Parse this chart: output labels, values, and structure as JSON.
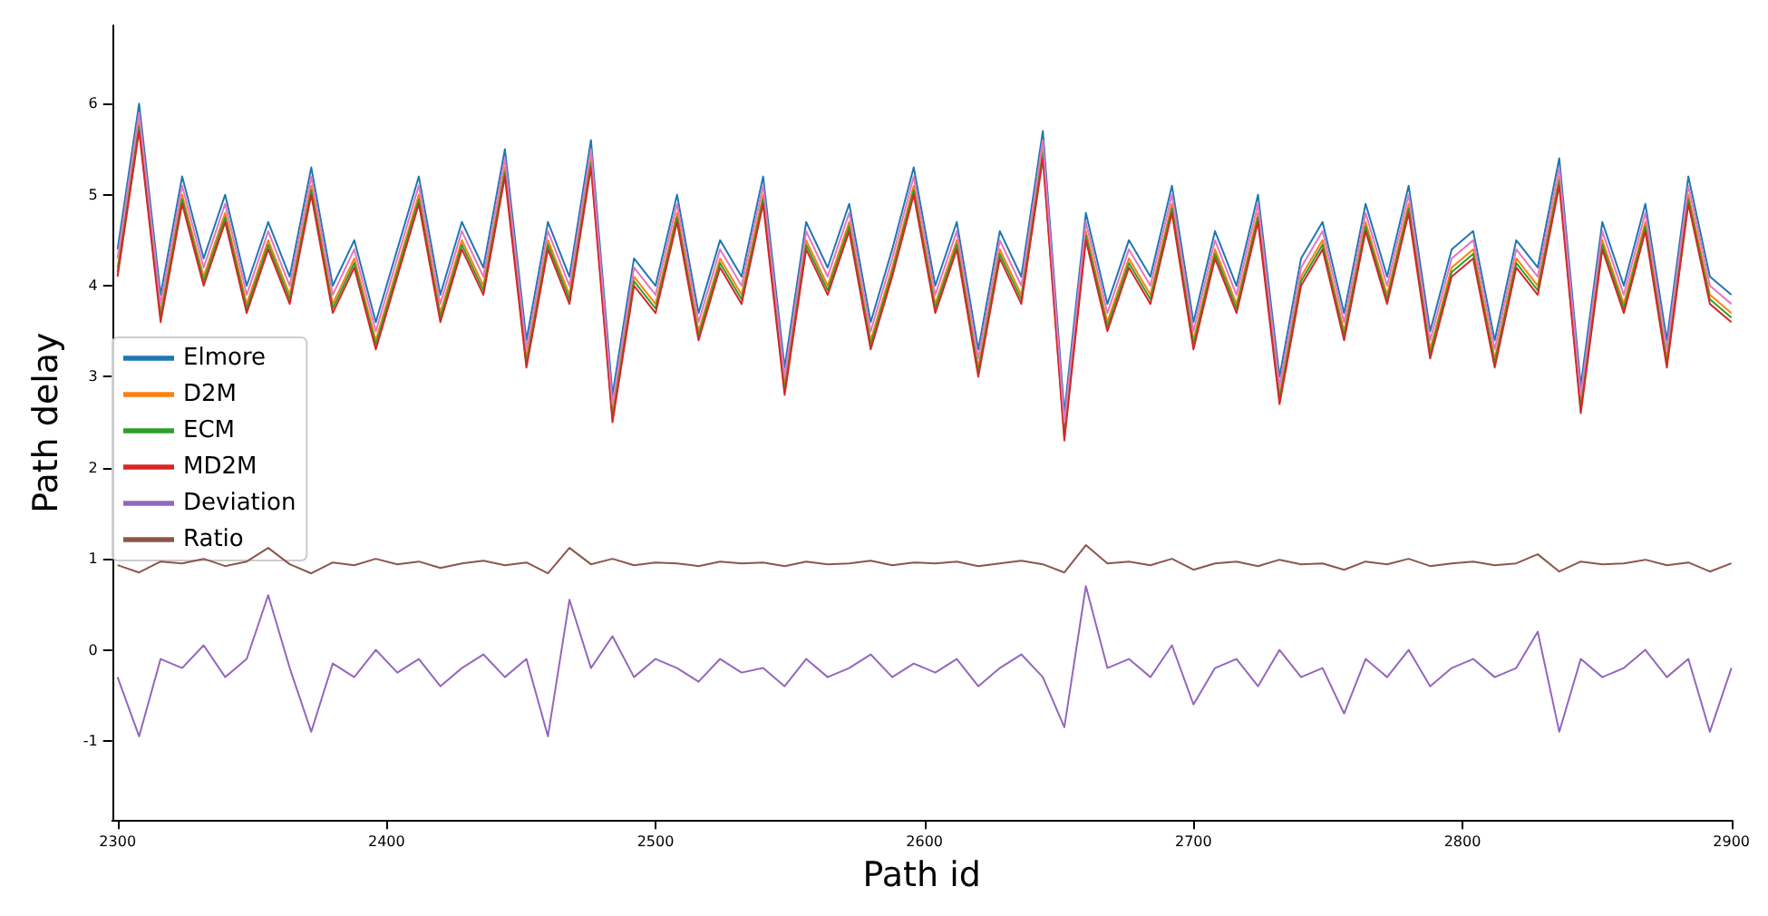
{
  "chart_data": {
    "type": "line",
    "xlabel": "Path id",
    "ylabel": "Path delay",
    "xlim": [
      2298,
      2900
    ],
    "ylim": [
      -1.87,
      6.86
    ],
    "xticks": [
      2300,
      2400,
      2500,
      2600,
      2700,
      2800,
      2900
    ],
    "yticks": [
      -1,
      0,
      1,
      2,
      3,
      4,
      5,
      6
    ],
    "grid": false,
    "legend": "left",
    "marker": "none",
    "line_style": "solid",
    "x": [
      2300,
      2308,
      2316,
      2324,
      2332,
      2340,
      2348,
      2356,
      2364,
      2372,
      2380,
      2388,
      2396,
      2404,
      2412,
      2420,
      2428,
      2436,
      2444,
      2452,
      2460,
      2468,
      2476,
      2484,
      2492,
      2500,
      2508,
      2516,
      2524,
      2532,
      2540,
      2548,
      2556,
      2564,
      2572,
      2580,
      2588,
      2596,
      2604,
      2612,
      2620,
      2628,
      2636,
      2644,
      2652,
      2660,
      2668,
      2676,
      2684,
      2692,
      2700,
      2708,
      2716,
      2724,
      2732,
      2740,
      2748,
      2756,
      2764,
      2772,
      2780,
      2788,
      2796,
      2804,
      2812,
      2820,
      2828,
      2836,
      2844,
      2852,
      2860,
      2868,
      2876,
      2884,
      2892,
      2900
    ],
    "series": [
      {
        "name": "Elmore",
        "color": "#1f77b4",
        "values": [
          4.4,
          6.0,
          3.9,
          5.2,
          4.3,
          5.0,
          4.0,
          4.7,
          4.1,
          5.3,
          4.0,
          4.5,
          3.6,
          4.4,
          5.2,
          3.9,
          4.7,
          4.2,
          5.5,
          3.4,
          4.7,
          4.1,
          5.6,
          2.8,
          4.3,
          4.0,
          5.0,
          3.7,
          4.5,
          4.1,
          5.2,
          3.1,
          4.7,
          4.2,
          4.9,
          3.6,
          4.4,
          5.3,
          4.0,
          4.7,
          3.3,
          4.6,
          4.1,
          5.7,
          2.6,
          4.8,
          3.8,
          4.5,
          4.1,
          5.1,
          3.6,
          4.6,
          4.0,
          5.0,
          3.0,
          4.3,
          4.7,
          3.7,
          4.9,
          4.1,
          5.1,
          3.5,
          4.4,
          4.6,
          3.4,
          4.5,
          4.2,
          5.4,
          2.9,
          4.7,
          4.0,
          4.9,
          3.4,
          5.2,
          4.1,
          3.9
        ]
      },
      {
        "name": "D2M",
        "color": "#ff7f0e",
        "values": [
          4.2,
          5.8,
          3.7,
          5.0,
          4.1,
          4.8,
          3.8,
          4.5,
          3.9,
          5.1,
          3.8,
          4.3,
          3.4,
          4.2,
          5.0,
          3.7,
          4.5,
          4.0,
          5.3,
          3.2,
          4.5,
          3.9,
          5.4,
          2.6,
          4.1,
          3.8,
          4.8,
          3.5,
          4.3,
          3.9,
          5.0,
          2.9,
          4.5,
          4.0,
          4.7,
          3.4,
          4.2,
          5.1,
          3.8,
          4.5,
          3.1,
          4.4,
          3.9,
          5.5,
          2.4,
          4.6,
          3.6,
          4.3,
          3.9,
          4.9,
          3.4,
          4.4,
          3.8,
          4.8,
          2.8,
          4.1,
          4.5,
          3.5,
          4.7,
          3.9,
          4.9,
          3.3,
          4.2,
          4.4,
          3.2,
          4.3,
          4.0,
          5.2,
          2.7,
          4.5,
          3.8,
          4.7,
          3.2,
          5.0,
          3.9,
          3.7
        ]
      },
      {
        "name": "ECM",
        "color": "#2ca02c",
        "values": [
          4.15,
          5.75,
          3.65,
          4.95,
          4.05,
          4.75,
          3.75,
          4.45,
          3.85,
          5.05,
          3.75,
          4.25,
          3.35,
          4.15,
          4.95,
          3.65,
          4.45,
          3.95,
          5.25,
          3.15,
          4.45,
          3.85,
          5.35,
          2.55,
          4.05,
          3.75,
          4.75,
          3.45,
          4.25,
          3.85,
          4.95,
          2.85,
          4.45,
          3.95,
          4.65,
          3.35,
          4.15,
          5.05,
          3.75,
          4.45,
          3.05,
          4.35,
          3.85,
          5.45,
          2.35,
          4.55,
          3.55,
          4.25,
          3.85,
          4.85,
          3.35,
          4.35,
          3.75,
          4.75,
          2.75,
          4.05,
          4.45,
          3.45,
          4.65,
          3.85,
          4.85,
          3.25,
          4.15,
          4.35,
          3.15,
          4.25,
          3.95,
          5.15,
          2.65,
          4.45,
          3.75,
          4.65,
          3.15,
          4.95,
          3.85,
          3.65
        ]
      },
      {
        "name": "MD2M",
        "color": "#d62728",
        "values": [
          4.1,
          5.7,
          3.6,
          4.9,
          4.0,
          4.7,
          3.7,
          4.4,
          3.8,
          5.0,
          3.7,
          4.2,
          3.3,
          4.1,
          4.9,
          3.6,
          4.4,
          3.9,
          5.2,
          3.1,
          4.4,
          3.8,
          5.3,
          2.5,
          4.0,
          3.7,
          4.7,
          3.4,
          4.2,
          3.8,
          4.9,
          2.8,
          4.4,
          3.9,
          4.6,
          3.3,
          4.1,
          5.0,
          3.7,
          4.4,
          3.0,
          4.3,
          3.8,
          5.4,
          2.3,
          4.5,
          3.5,
          4.2,
          3.8,
          4.8,
          3.3,
          4.3,
          3.7,
          4.7,
          2.7,
          4.0,
          4.4,
          3.4,
          4.6,
          3.8,
          4.8,
          3.2,
          4.1,
          4.3,
          3.1,
          4.2,
          3.9,
          5.1,
          2.6,
          4.4,
          3.7,
          4.6,
          3.1,
          4.9,
          3.8,
          3.6
        ]
      },
      {
        "name": "Deviation",
        "color": "#9467bd",
        "values": [
          -0.3,
          -0.95,
          -0.1,
          -0.2,
          0.05,
          -0.3,
          -0.1,
          0.6,
          -0.2,
          -0.9,
          -0.15,
          -0.3,
          0.0,
          -0.25,
          -0.1,
          -0.4,
          -0.2,
          -0.05,
          -0.3,
          -0.1,
          -0.95,
          0.55,
          -0.2,
          0.15,
          -0.3,
          -0.1,
          -0.2,
          -0.35,
          -0.1,
          -0.25,
          -0.2,
          -0.4,
          -0.1,
          -0.3,
          -0.2,
          -0.05,
          -0.3,
          -0.15,
          -0.25,
          -0.1,
          -0.4,
          -0.2,
          -0.05,
          -0.3,
          -0.85,
          0.7,
          -0.2,
          -0.1,
          -0.3,
          0.05,
          -0.6,
          -0.2,
          -0.1,
          -0.4,
          0.0,
          -0.3,
          -0.2,
          -0.7,
          -0.1,
          -0.3,
          0.0,
          -0.4,
          -0.2,
          -0.1,
          -0.3,
          -0.2,
          0.2,
          -0.9,
          -0.1,
          -0.3,
          -0.2,
          0.0,
          -0.3,
          -0.1,
          -0.9,
          -0.2
        ]
      },
      {
        "name": "Ratio",
        "color": "#8c564b",
        "values": [
          0.93,
          0.85,
          0.97,
          0.95,
          1.0,
          0.92,
          0.97,
          1.12,
          0.94,
          0.84,
          0.96,
          0.93,
          1.0,
          0.94,
          0.97,
          0.9,
          0.95,
          0.98,
          0.93,
          0.96,
          0.84,
          1.12,
          0.94,
          1.0,
          0.93,
          0.96,
          0.95,
          0.92,
          0.97,
          0.95,
          0.96,
          0.92,
          0.97,
          0.94,
          0.95,
          0.98,
          0.93,
          0.96,
          0.95,
          0.97,
          0.92,
          0.95,
          0.98,
          0.94,
          0.85,
          1.15,
          0.95,
          0.97,
          0.93,
          1.0,
          0.88,
          0.95,
          0.97,
          0.92,
          0.99,
          0.94,
          0.95,
          0.88,
          0.97,
          0.94,
          1.0,
          0.92,
          0.95,
          0.97,
          0.93,
          0.95,
          1.05,
          0.86,
          0.97,
          0.94,
          0.95,
          0.99,
          0.93,
          0.96,
          0.86,
          0.95
        ]
      },
      {
        "color": "#e377c2",
        "values": [
          4.3,
          5.9,
          3.8,
          5.1,
          4.2,
          4.9,
          3.9,
          4.6,
          4.0,
          5.2,
          3.9,
          4.4,
          3.5,
          4.3,
          5.1,
          3.8,
          4.6,
          4.1,
          5.4,
          3.3,
          4.6,
          4.0,
          5.5,
          2.7,
          4.2,
          3.9,
          4.9,
          3.6,
          4.4,
          4.0,
          5.1,
          3.0,
          4.6,
          4.1,
          4.8,
          3.5,
          4.3,
          5.2,
          3.9,
          4.6,
          3.2,
          4.5,
          4.0,
          5.6,
          2.5,
          4.7,
          3.7,
          4.4,
          4.0,
          5.0,
          3.5,
          4.5,
          3.9,
          4.9,
          2.9,
          4.2,
          4.6,
          3.6,
          4.8,
          4.0,
          5.0,
          3.4,
          4.3,
          4.5,
          3.3,
          4.4,
          4.1,
          5.3,
          2.8,
          4.6,
          3.9,
          4.8,
          3.3,
          5.1,
          4.0,
          3.8
        ]
      }
    ]
  }
}
